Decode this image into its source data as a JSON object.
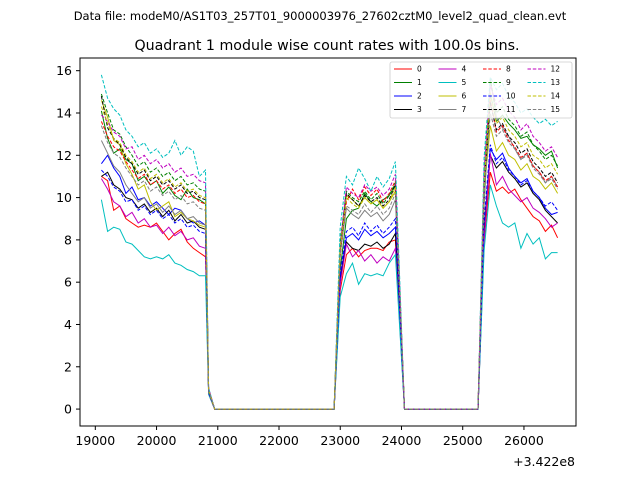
{
  "chart_data": {
    "type": "line",
    "suptitle": "Data file: modeM0/AS1T03_257T01_9000003976_27602cztM0_level2_quad_clean.evt",
    "title": "Quadrant 1 module wise count rates with 100.0s bins.",
    "xlabel": "",
    "ylabel": "",
    "offset_label": "+3.422e8",
    "xlim": [
      18750,
      26850
    ],
    "ylim": [
      -0.8,
      16.6
    ],
    "xticks": [
      19000,
      20000,
      21000,
      22000,
      23000,
      24000,
      25000,
      26000
    ],
    "yticks": [
      0,
      2,
      4,
      6,
      8,
      10,
      12,
      14,
      16
    ],
    "legend_position": "top-right",
    "x": [
      19100,
      19200,
      19300,
      19400,
      19500,
      19600,
      19700,
      19800,
      19900,
      20000,
      20100,
      20200,
      20300,
      20400,
      20500,
      20600,
      20700,
      20800,
      20850,
      20950,
      21050,
      22900,
      23000,
      23100,
      23200,
      23300,
      23400,
      23500,
      23600,
      23700,
      23800,
      23900,
      24050,
      25250,
      25350,
      25450,
      25550,
      25650,
      25750,
      25850,
      25950,
      26050,
      26150,
      26250,
      26350,
      26450,
      26550
    ],
    "series": [
      {
        "name": "0",
        "color": "#ff0000",
        "dash": "solid",
        "values": [
          11.0,
          10.8,
          9.4,
          9.6,
          9.0,
          8.8,
          8.6,
          8.7,
          8.6,
          8.8,
          8.4,
          8.0,
          8.3,
          8.5,
          7.9,
          7.6,
          7.4,
          7.2,
          0.8,
          0.0,
          0.0,
          0.0,
          5.6,
          7.3,
          7.6,
          7.2,
          7.5,
          7.6,
          7.6,
          7.5,
          7.9,
          8.0,
          0.0,
          0.0,
          7.9,
          11.2,
          10.3,
          10.5,
          10.2,
          10.4,
          9.9,
          9.5,
          9.1,
          8.9,
          8.4,
          8.7,
          8.1
        ]
      },
      {
        "name": "1",
        "color": "#008000",
        "dash": "solid",
        "values": [
          14.1,
          12.8,
          12.1,
          12.3,
          11.8,
          11.6,
          10.8,
          11.0,
          10.6,
          10.8,
          10.2,
          10.5,
          10.1,
          9.9,
          10.4,
          10.0,
          9.9,
          9.7,
          0.9,
          0.0,
          0.0,
          0.0,
          6.6,
          9.0,
          9.4,
          9.5,
          10.2,
          9.8,
          9.6,
          9.9,
          10.1,
          10.6,
          0.0,
          0.0,
          9.7,
          14.9,
          13.6,
          13.9,
          13.5,
          13.2,
          12.8,
          12.9,
          12.5,
          12.3,
          12.0,
          12.2,
          11.4
        ]
      },
      {
        "name": "2",
        "color": "#0000ff",
        "dash": "solid",
        "values": [
          11.6,
          12.0,
          11.4,
          11.0,
          10.2,
          10.5,
          9.9,
          10.0,
          9.6,
          9.8,
          9.5,
          9.2,
          9.5,
          9.4,
          9.0,
          8.8,
          8.9,
          8.7,
          0.8,
          0.0,
          0.0,
          0.0,
          6.2,
          8.1,
          8.3,
          8.0,
          8.5,
          8.2,
          8.4,
          8.1,
          8.3,
          8.6,
          0.0,
          0.0,
          8.4,
          12.3,
          11.8,
          12.1,
          11.4,
          11.0,
          10.7,
          10.9,
          10.3,
          10.0,
          9.5,
          9.2,
          9.3
        ]
      },
      {
        "name": "3",
        "color": "#000000",
        "dash": "solid",
        "values": [
          11.0,
          11.2,
          10.6,
          10.4,
          10.0,
          9.9,
          9.5,
          9.7,
          9.3,
          9.5,
          9.1,
          9.4,
          8.9,
          9.2,
          8.8,
          8.9,
          8.6,
          8.5,
          0.8,
          0.0,
          0.0,
          0.0,
          6.0,
          7.9,
          7.6,
          7.5,
          7.8,
          7.7,
          7.9,
          7.6,
          7.8,
          8.3,
          0.0,
          0.0,
          8.3,
          12.0,
          11.4,
          11.7,
          11.2,
          10.9,
          10.5,
          10.7,
          10.2,
          9.9,
          9.4,
          9.1,
          8.8
        ]
      },
      {
        "name": "4",
        "color": "#bf00bf",
        "dash": "solid",
        "values": [
          10.9,
          10.4,
          9.8,
          9.6,
          9.1,
          9.3,
          8.8,
          9.0,
          8.6,
          8.7,
          8.3,
          8.6,
          8.2,
          8.4,
          8.0,
          8.1,
          7.7,
          7.6,
          0.7,
          0.0,
          0.0,
          0.0,
          5.9,
          7.8,
          7.2,
          7.5,
          7.0,
          7.3,
          6.9,
          7.2,
          7.0,
          7.6,
          0.0,
          0.0,
          8.0,
          12.1,
          10.6,
          11.0,
          10.4,
          10.1,
          9.8,
          10.0,
          9.5,
          9.3,
          9.0,
          8.6,
          8.8
        ]
      },
      {
        "name": "5",
        "color": "#00bfbf",
        "dash": "solid",
        "values": [
          9.9,
          8.4,
          8.6,
          8.5,
          7.9,
          7.8,
          7.5,
          7.2,
          7.1,
          7.2,
          7.1,
          7.3,
          6.9,
          6.8,
          6.6,
          6.5,
          6.3,
          6.3,
          0.7,
          0.0,
          0.0,
          0.0,
          5.3,
          6.4,
          6.9,
          5.9,
          6.4,
          6.3,
          6.4,
          6.3,
          6.9,
          7.3,
          0.0,
          0.0,
          7.5,
          10.6,
          9.6,
          8.8,
          8.6,
          8.8,
          7.6,
          8.3,
          7.8,
          8.1,
          7.1,
          7.4,
          7.4
        ]
      },
      {
        "name": "6",
        "color": "#bfbf00",
        "dash": "solid",
        "values": [
          14.6,
          13.8,
          12.7,
          12.5,
          11.6,
          11.1,
          10.4,
          10.6,
          9.8,
          9.4,
          9.6,
          9.8,
          9.1,
          9.3,
          9.0,
          8.9,
          8.7,
          8.6,
          0.8,
          0.0,
          0.0,
          0.0,
          7.8,
          10.1,
          9.9,
          9.6,
          10.0,
          9.7,
          9.9,
          9.5,
          9.8,
          10.3,
          0.0,
          0.0,
          10.3,
          13.4,
          12.2,
          12.6,
          12.0,
          11.8,
          11.3,
          11.6,
          11.0,
          10.8,
          10.4,
          10.7,
          10.2
        ]
      },
      {
        "name": "7",
        "color": "#808080",
        "dash": "solid",
        "values": [
          12.7,
          12.1,
          11.5,
          11.2,
          10.6,
          10.2,
          9.8,
          10.0,
          9.5,
          9.7,
          9.3,
          9.6,
          9.2,
          9.4,
          9.0,
          9.1,
          8.8,
          8.7,
          0.8,
          0.0,
          0.0,
          0.0,
          7.4,
          9.5,
          9.2,
          9.0,
          9.4,
          9.1,
          9.3,
          8.9,
          9.2,
          9.9,
          0.0,
          0.0,
          9.8,
          15.6,
          13.8,
          13.3,
          12.9,
          12.3,
          11.8,
          12.1,
          11.5,
          11.2,
          10.7,
          11.0,
          10.5
        ]
      },
      {
        "name": "8",
        "color": "#ff0000",
        "dash": "dashed",
        "values": [
          13.6,
          12.9,
          12.4,
          12.2,
          11.7,
          11.3,
          10.9,
          11.1,
          10.6,
          10.8,
          10.4,
          10.6,
          10.2,
          10.4,
          10.0,
          10.1,
          9.8,
          9.7,
          0.9,
          0.0,
          0.0,
          0.0,
          7.2,
          9.8,
          10.4,
          9.9,
          10.5,
          10.1,
          10.4,
          9.8,
          10.2,
          10.8,
          0.0,
          0.0,
          11.0,
          14.6,
          13.1,
          13.4,
          12.7,
          12.4,
          11.9,
          12.1,
          11.5,
          11.2,
          10.8,
          11.0,
          10.5
        ]
      },
      {
        "name": "9",
        "color": "#008000",
        "dash": "dashed",
        "values": [
          14.9,
          14.0,
          13.2,
          13.0,
          12.4,
          12.0,
          11.5,
          11.7,
          11.2,
          11.4,
          11.0,
          11.2,
          10.8,
          11.0,
          10.6,
          10.7,
          10.4,
          10.3,
          0.9,
          0.0,
          0.0,
          0.0,
          7.9,
          10.3,
          10.0,
          9.8,
          10.3,
          9.9,
          10.2,
          9.7,
          10.1,
          10.7,
          0.0,
          0.0,
          10.9,
          15.6,
          14.0,
          14.3,
          13.7,
          13.4,
          12.9,
          13.1,
          12.5,
          12.2,
          11.8,
          12.0,
          11.5
        ]
      },
      {
        "name": "10",
        "color": "#0000ff",
        "dash": "dashed",
        "values": [
          11.3,
          11.0,
          10.5,
          10.3,
          9.8,
          9.9,
          9.4,
          9.6,
          9.2,
          9.4,
          9.0,
          9.2,
          8.8,
          9.0,
          8.6,
          8.7,
          8.4,
          8.3,
          0.8,
          0.0,
          0.0,
          0.0,
          6.4,
          8.4,
          8.6,
          8.2,
          8.8,
          8.4,
          8.7,
          8.3,
          8.6,
          9.0,
          0.0,
          0.0,
          8.9,
          12.5,
          11.6,
          11.9,
          11.3,
          11.0,
          10.6,
          10.8,
          10.3,
          10.0,
          9.6,
          9.8,
          9.4
        ]
      },
      {
        "name": "11",
        "color": "#000000",
        "dash": "dashed",
        "values": [
          14.8,
          13.3,
          12.8,
          12.5,
          11.9,
          11.6,
          11.1,
          11.3,
          10.8,
          11.0,
          10.6,
          10.8,
          10.4,
          10.6,
          10.2,
          10.3,
          10.0,
          9.9,
          0.9,
          0.0,
          0.0,
          0.0,
          7.5,
          10.2,
          9.9,
          9.6,
          10.1,
          9.8,
          10.0,
          9.6,
          9.9,
          10.6,
          0.0,
          0.0,
          10.5,
          14.5,
          13.2,
          13.5,
          12.9,
          12.6,
          12.1,
          12.3,
          11.7,
          11.4,
          11.0,
          11.2,
          10.7
        ]
      },
      {
        "name": "12",
        "color": "#bf00bf",
        "dash": "dashed",
        "values": [
          13.9,
          13.6,
          13.1,
          12.9,
          12.3,
          12.4,
          11.8,
          12.0,
          11.6,
          11.8,
          11.4,
          11.6,
          11.2,
          11.4,
          11.0,
          11.1,
          10.8,
          10.7,
          1.0,
          0.0,
          0.0,
          0.0,
          7.7,
          10.5,
          10.2,
          10.0,
          10.6,
          10.3,
          10.5,
          10.1,
          10.4,
          11.1,
          0.0,
          0.0,
          11.3,
          15.3,
          14.4,
          14.7,
          14.1,
          13.8,
          13.2,
          13.5,
          12.9,
          12.6,
          12.2,
          12.4,
          11.9
        ]
      },
      {
        "name": "13",
        "color": "#00bfbf",
        "dash": "dashed",
        "values": [
          15.8,
          14.7,
          14.2,
          13.9,
          13.2,
          12.9,
          12.4,
          12.6,
          12.1,
          12.3,
          11.9,
          12.1,
          12.7,
          12.0,
          12.4,
          12.2,
          11.0,
          11.3,
          1.0,
          0.0,
          0.0,
          0.0,
          8.6,
          11.0,
          10.6,
          11.4,
          10.9,
          10.3,
          11.0,
          10.5,
          10.9,
          11.7,
          0.0,
          0.0,
          11.9,
          15.7,
          15.1,
          15.4,
          14.8,
          14.5,
          14.0,
          14.2,
          13.8,
          13.5,
          13.7,
          13.4,
          13.6
        ]
      },
      {
        "name": "14",
        "color": "#bfbf00",
        "dash": "dashed",
        "values": [
          14.3,
          13.5,
          12.8,
          12.6,
          12.0,
          11.7,
          11.2,
          11.4,
          10.9,
          11.1,
          10.7,
          10.9,
          10.5,
          10.7,
          10.3,
          10.4,
          10.1,
          10.0,
          0.9,
          0.0,
          0.0,
          0.0,
          7.6,
          10.0,
          9.7,
          9.5,
          10.0,
          9.7,
          9.9,
          9.5,
          9.8,
          10.5,
          0.0,
          0.0,
          10.7,
          15.0,
          13.5,
          13.8,
          13.2,
          12.9,
          12.4,
          12.6,
          12.0,
          11.8,
          11.4,
          11.6,
          11.1
        ]
      },
      {
        "name": "15",
        "color": "#808080",
        "dash": "dashed",
        "values": [
          13.4,
          12.6,
          12.1,
          11.9,
          11.4,
          11.0,
          10.6,
          10.8,
          10.3,
          10.5,
          10.1,
          10.3,
          9.9,
          10.1,
          9.7,
          9.8,
          9.5,
          9.4,
          0.9,
          0.0,
          0.0,
          0.0,
          7.3,
          9.6,
          9.4,
          9.2,
          9.7,
          9.3,
          9.6,
          9.2,
          9.5,
          10.2,
          0.0,
          0.0,
          10.1,
          14.0,
          12.9,
          13.2,
          12.6,
          12.3,
          11.8,
          12.0,
          11.4,
          11.1,
          10.7,
          10.9,
          10.4
        ]
      }
    ]
  }
}
